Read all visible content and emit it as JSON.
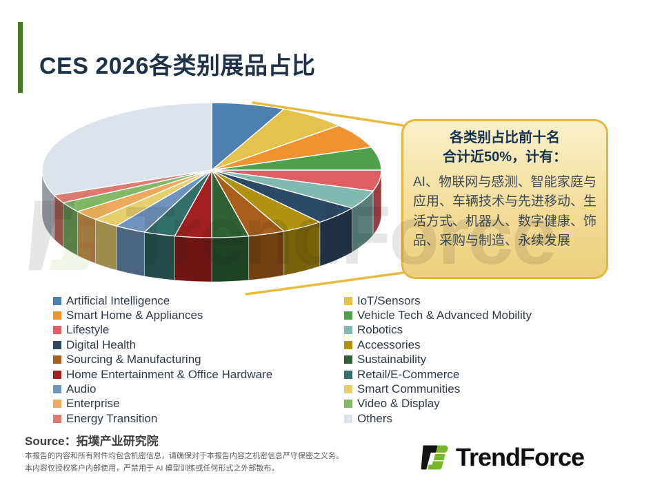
{
  "header": {
    "title": "CES 2026各类别展品占比",
    "accent_color": "#44791F",
    "title_color": "#1D3147"
  },
  "chart_data": {
    "type": "pie",
    "style": "3d",
    "title": "CES 2026各类别展品占比",
    "unit": "%",
    "legend_position": "bottom",
    "legend_columns": 2,
    "categories": [
      "Artificial Intelligence",
      "IoT/Sensors",
      "Smart Home & Appliances",
      "Vehicle Tech & Advanced Mobility",
      "Lifestyle",
      "Robotics",
      "Digital Health",
      "Accessories",
      "Sourcing & Manufacturing",
      "Sustainability",
      "Home Entertainment & Office Hardware",
      "Retail/E-Commerce",
      "Audio",
      "Smart Communities",
      "Enterprise",
      "Video & Display",
      "Energy Transition",
      "Others"
    ],
    "values": [
      7,
      6.5,
      6,
      5.5,
      5,
      4.5,
      4.5,
      4,
      3.5,
      3.5,
      3.5,
      3,
      3,
      2.5,
      2.5,
      2.5,
      2,
      31
    ],
    "colors": [
      "#4E80AF",
      "#E3C24E",
      "#EE9330",
      "#4FA04C",
      "#DE5E62",
      "#82B9B0",
      "#2C4A66",
      "#B09110",
      "#A85F1C",
      "#2E6133",
      "#A2201F",
      "#34706B",
      "#6E94BE",
      "#E8CF6D",
      "#EFA95D",
      "#82B868",
      "#DD7A6F",
      "#DCE3ED"
    ]
  },
  "callout": {
    "heading": [
      "各类别占比前十名",
      "合计近50%，计有："
    ],
    "body": "AI、物联网与感测、智能家庭与应用、车辆技术与先进移动、生活方式、机器人、数字健康、饰品、采购与制造、永续发展",
    "border_color": "#E4B83F",
    "heading_color": "#16334F",
    "body_color": "#3E4A57"
  },
  "source": {
    "label": "Source",
    "separator": "：",
    "value": "拓墣产业研究院"
  },
  "disclaimer": {
    "line1": "本报告的内容和所有附件均包含机密信息，请确保对于本报告内容之机密信息严守保密之义务。",
    "line2": "本内容仅授权客户内部使用，严禁用于 AI 模型训练或任何形式之外部散布。"
  },
  "branding": {
    "logo_text": "TrendForce",
    "watermark_text": "TrendForce",
    "logo_black": "#141414",
    "logo_green": "#76B82A"
  }
}
